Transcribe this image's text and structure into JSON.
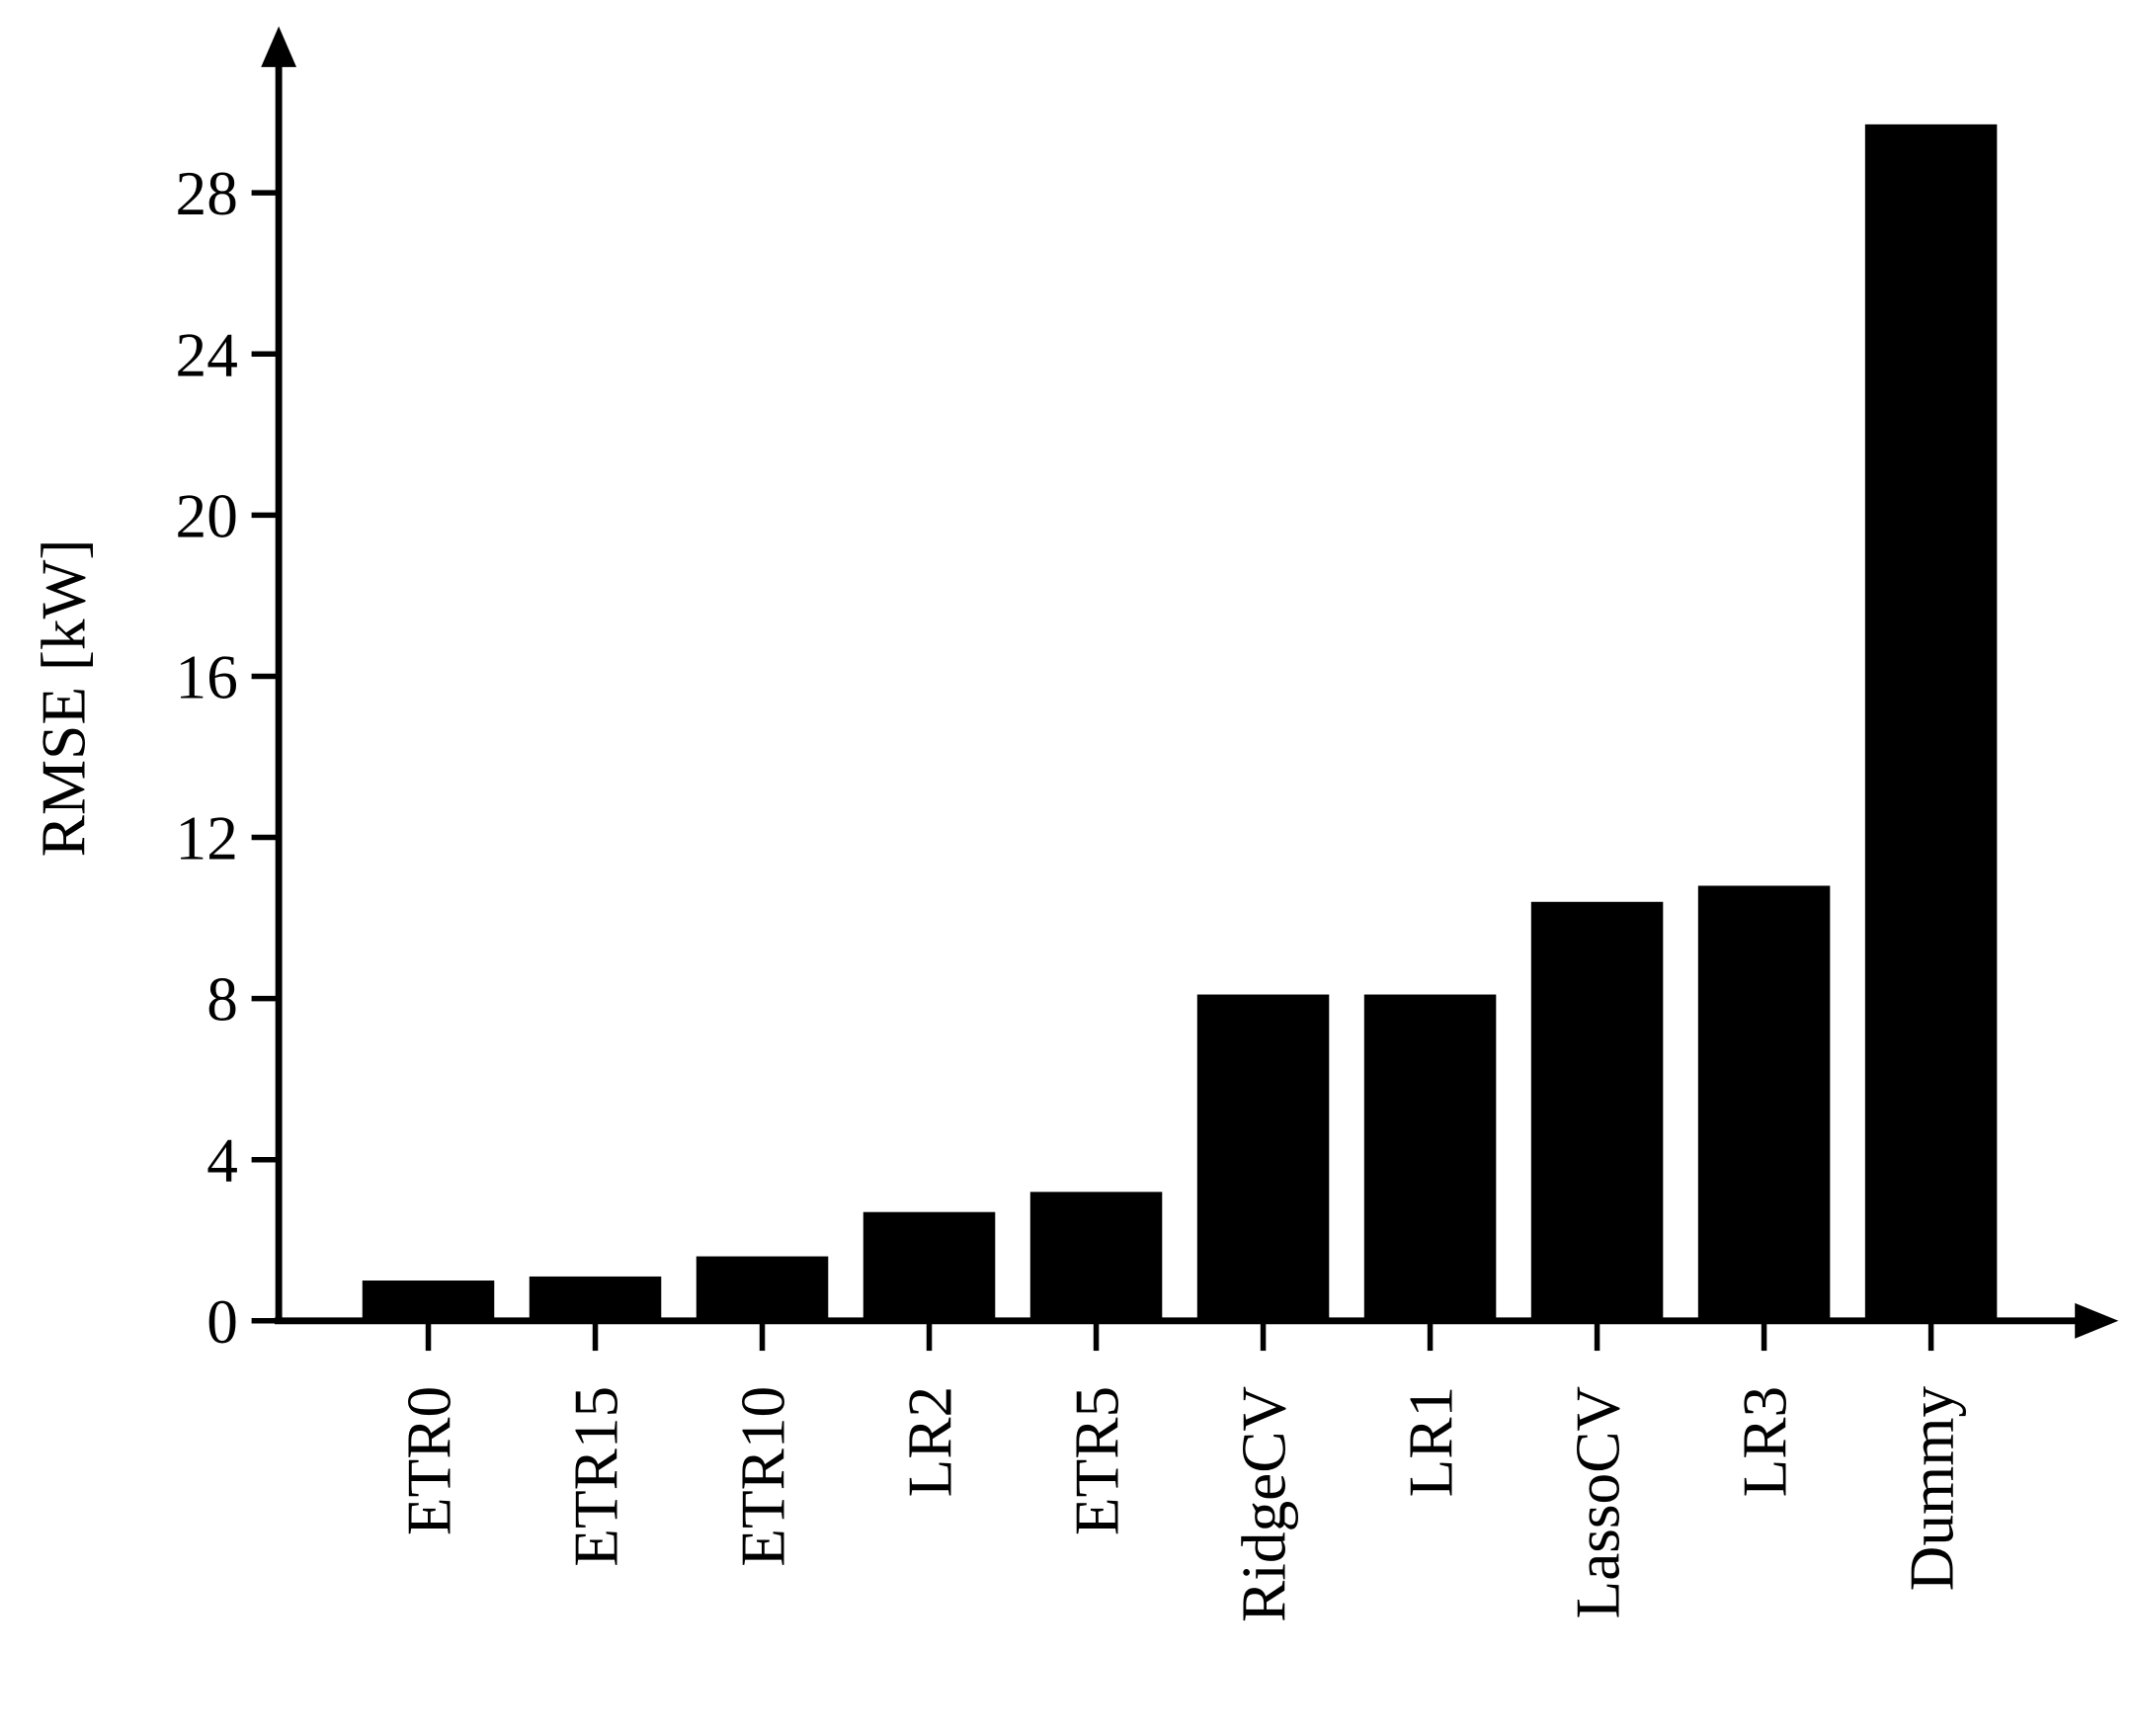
{
  "chart_data": {
    "type": "bar",
    "y_label": "RMSE [kW]",
    "categories": [
      "ETR0",
      "ETR15",
      "ETR10",
      "LR2",
      "ETR5",
      "RidgeCV",
      "LR1",
      "LassoCV",
      "LR3",
      "Dummy"
    ],
    "values": [
      1.0,
      1.1,
      1.6,
      2.7,
      3.2,
      8.1,
      8.1,
      10.4,
      10.8,
      29.7
    ],
    "color": "#000000",
    "ylim": [
      0,
      32
    ],
    "yticks": [
      0,
      4,
      8,
      12,
      16,
      20,
      24,
      28
    ],
    "grid": false
  }
}
